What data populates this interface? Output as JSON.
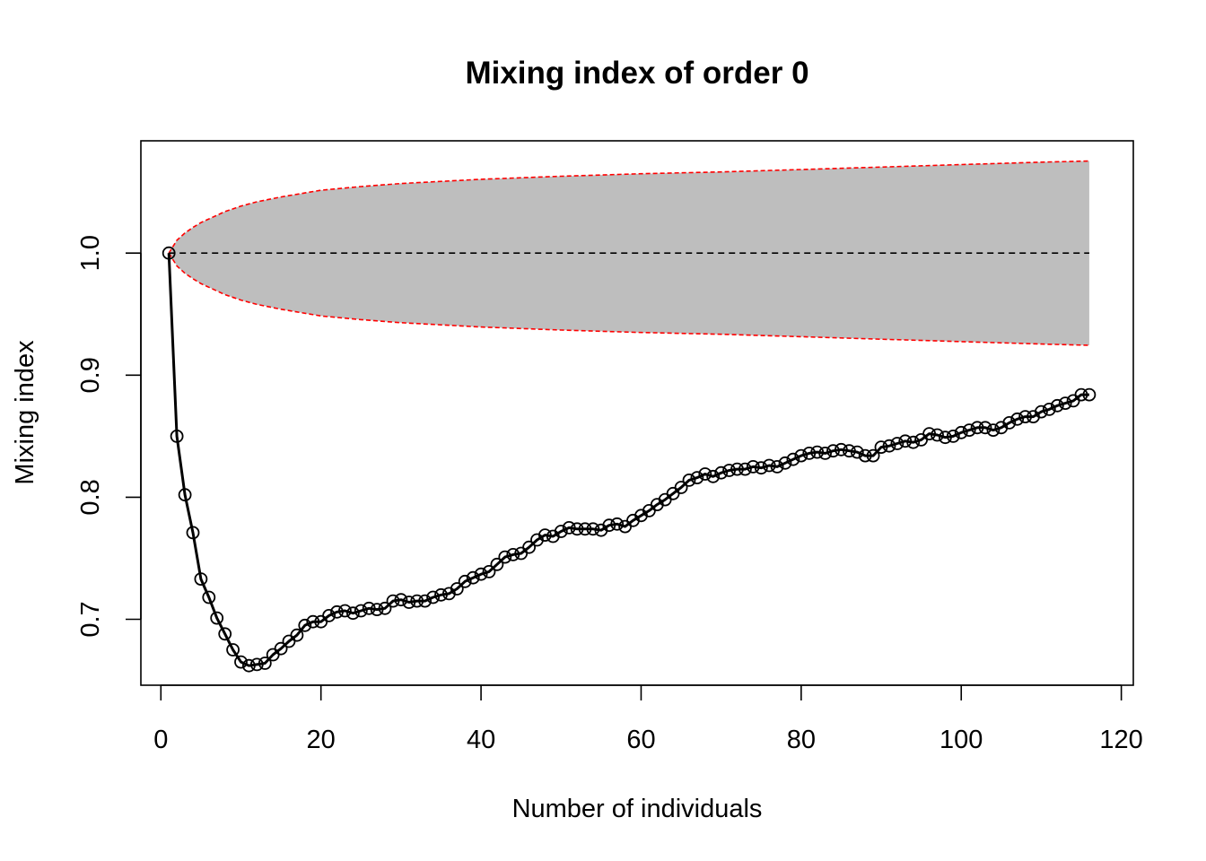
{
  "chart_data": {
    "type": "line",
    "title": "Mixing index of order 0",
    "xlabel": "Number of individuals",
    "ylabel": "Mixing index",
    "xlim": [
      -2.5,
      121.5
    ],
    "ylim": [
      0.646,
      1.092
    ],
    "xticks": [
      0,
      20,
      40,
      60,
      80,
      100,
      120
    ],
    "yticks": [
      0.7,
      0.8,
      0.9,
      1.0
    ],
    "ytick_labels": [
      "0.7",
      "0.8",
      "0.9",
      "1.0"
    ],
    "grid": false,
    "legend": "none",
    "reference_line": {
      "y": 1.0,
      "style": "dashed",
      "color": "#000000"
    },
    "envelope": {
      "fill": "#bebebe",
      "border_color": "#ff0000",
      "border_style": "dashed",
      "x": [
        1,
        2,
        3,
        4,
        5,
        6,
        8,
        10,
        12,
        15,
        20,
        25,
        30,
        40,
        50,
        60,
        70,
        80,
        90,
        100,
        110,
        116
      ],
      "upper": [
        1.0,
        1.0105,
        1.0165,
        1.021,
        1.025,
        1.028,
        1.034,
        1.0385,
        1.042,
        1.046,
        1.0515,
        1.0545,
        1.057,
        1.0605,
        1.063,
        1.065,
        1.0665,
        1.0685,
        1.0705,
        1.0725,
        1.0745,
        1.0755
      ],
      "lower": [
        1.0,
        0.9895,
        0.9835,
        0.979,
        0.975,
        0.972,
        0.966,
        0.9615,
        0.958,
        0.954,
        0.9485,
        0.9455,
        0.943,
        0.9395,
        0.937,
        0.935,
        0.9335,
        0.9315,
        0.9295,
        0.9275,
        0.9255,
        0.9245
      ]
    },
    "series": [
      {
        "color": "#000000",
        "marker": "circle",
        "x": [
          1,
          2,
          3,
          4,
          5,
          6,
          7,
          8,
          9,
          10,
          11,
          12,
          13,
          14,
          15,
          16,
          17,
          18,
          19,
          20,
          21,
          22,
          23,
          24,
          25,
          26,
          27,
          28,
          29,
          30,
          31,
          32,
          33,
          34,
          35,
          36,
          37,
          38,
          39,
          40,
          41,
          42,
          43,
          44,
          45,
          46,
          47,
          48,
          49,
          50,
          51,
          52,
          53,
          54,
          55,
          56,
          57,
          58,
          59,
          60,
          61,
          62,
          63,
          64,
          65,
          66,
          67,
          68,
          69,
          70,
          71,
          72,
          73,
          74,
          75,
          76,
          77,
          78,
          79,
          80,
          81,
          82,
          83,
          84,
          85,
          86,
          87,
          88,
          89,
          90,
          91,
          92,
          93,
          94,
          95,
          96,
          97,
          98,
          99,
          100,
          101,
          102,
          103,
          104,
          105,
          106,
          107,
          108,
          109,
          110,
          111,
          112,
          113,
          114,
          115,
          116
        ],
        "values": [
          1.0,
          0.85,
          0.802,
          0.771,
          0.733,
          0.718,
          0.701,
          0.688,
          0.675,
          0.665,
          0.662,
          0.663,
          0.664,
          0.671,
          0.676,
          0.682,
          0.687,
          0.695,
          0.698,
          0.698,
          0.703,
          0.706,
          0.707,
          0.705,
          0.707,
          0.709,
          0.708,
          0.709,
          0.715,
          0.716,
          0.714,
          0.715,
          0.715,
          0.718,
          0.72,
          0.721,
          0.725,
          0.731,
          0.734,
          0.737,
          0.739,
          0.745,
          0.751,
          0.753,
          0.754,
          0.759,
          0.765,
          0.769,
          0.768,
          0.772,
          0.775,
          0.774,
          0.774,
          0.774,
          0.773,
          0.777,
          0.778,
          0.776,
          0.781,
          0.785,
          0.789,
          0.794,
          0.798,
          0.803,
          0.808,
          0.814,
          0.816,
          0.819,
          0.817,
          0.82,
          0.822,
          0.823,
          0.823,
          0.825,
          0.824,
          0.826,
          0.825,
          0.828,
          0.831,
          0.834,
          0.836,
          0.837,
          0.836,
          0.838,
          0.839,
          0.838,
          0.837,
          0.834,
          0.834,
          0.841,
          0.842,
          0.844,
          0.846,
          0.845,
          0.847,
          0.852,
          0.851,
          0.849,
          0.85,
          0.853,
          0.855,
          0.857,
          0.857,
          0.855,
          0.857,
          0.861,
          0.864,
          0.866,
          0.866,
          0.87,
          0.872,
          0.875,
          0.877,
          0.879,
          0.884,
          0.884
        ]
      }
    ]
  }
}
